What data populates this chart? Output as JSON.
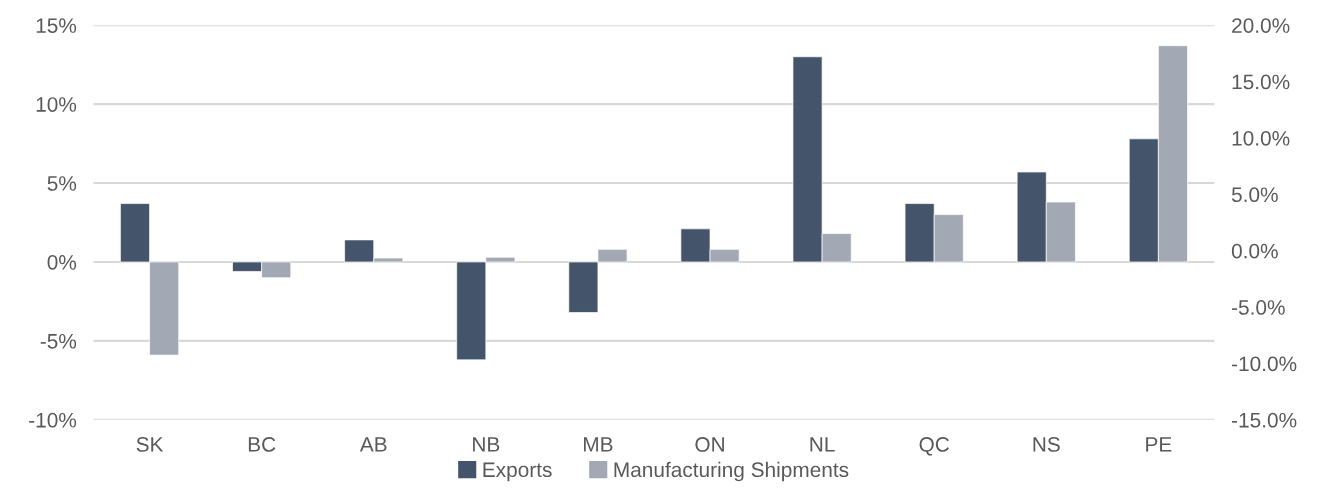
{
  "chart_data": {
    "type": "bar",
    "categories": [
      "SK",
      "BC",
      "AB",
      "NB",
      "MB",
      "ON",
      "NL",
      "QC",
      "NS",
      "PE"
    ],
    "series": [
      {
        "name": "Exports",
        "color": "#44546a",
        "values": [
          3.7,
          -0.6,
          1.4,
          -6.2,
          -3.2,
          2.1,
          13.0,
          3.7,
          5.7,
          7.8
        ]
      },
      {
        "name": "Manufacturing Shipments",
        "color": "#a2a9b4",
        "values": [
          -5.9,
          -1.0,
          0.25,
          0.3,
          0.8,
          0.8,
          1.8,
          3.0,
          3.8,
          13.7
        ]
      }
    ],
    "ylim": [
      -10,
      15
    ],
    "yticks": [
      {
        "value": -10,
        "label": "-10%"
      },
      {
        "value": -5,
        "label": "-5%"
      },
      {
        "value": 0,
        "label": "0%"
      },
      {
        "value": 5,
        "label": "5%"
      },
      {
        "value": 10,
        "label": "10%"
      },
      {
        "value": 15,
        "label": "15%"
      }
    ],
    "y2lim": [
      -15,
      20
    ],
    "y2ticks": [
      {
        "value": -15,
        "label": "-15.0%"
      },
      {
        "value": -10,
        "label": "-10.0%"
      },
      {
        "value": -5,
        "label": "-5.0%"
      },
      {
        "value": 0,
        "label": "0.0%"
      },
      {
        "value": 5,
        "label": "5.0%"
      },
      {
        "value": 10,
        "label": "10.0%"
      },
      {
        "value": 15,
        "label": "15.0%"
      },
      {
        "value": 20,
        "label": "20.0%"
      }
    ],
    "grid": "y",
    "legend": "bottom"
  }
}
